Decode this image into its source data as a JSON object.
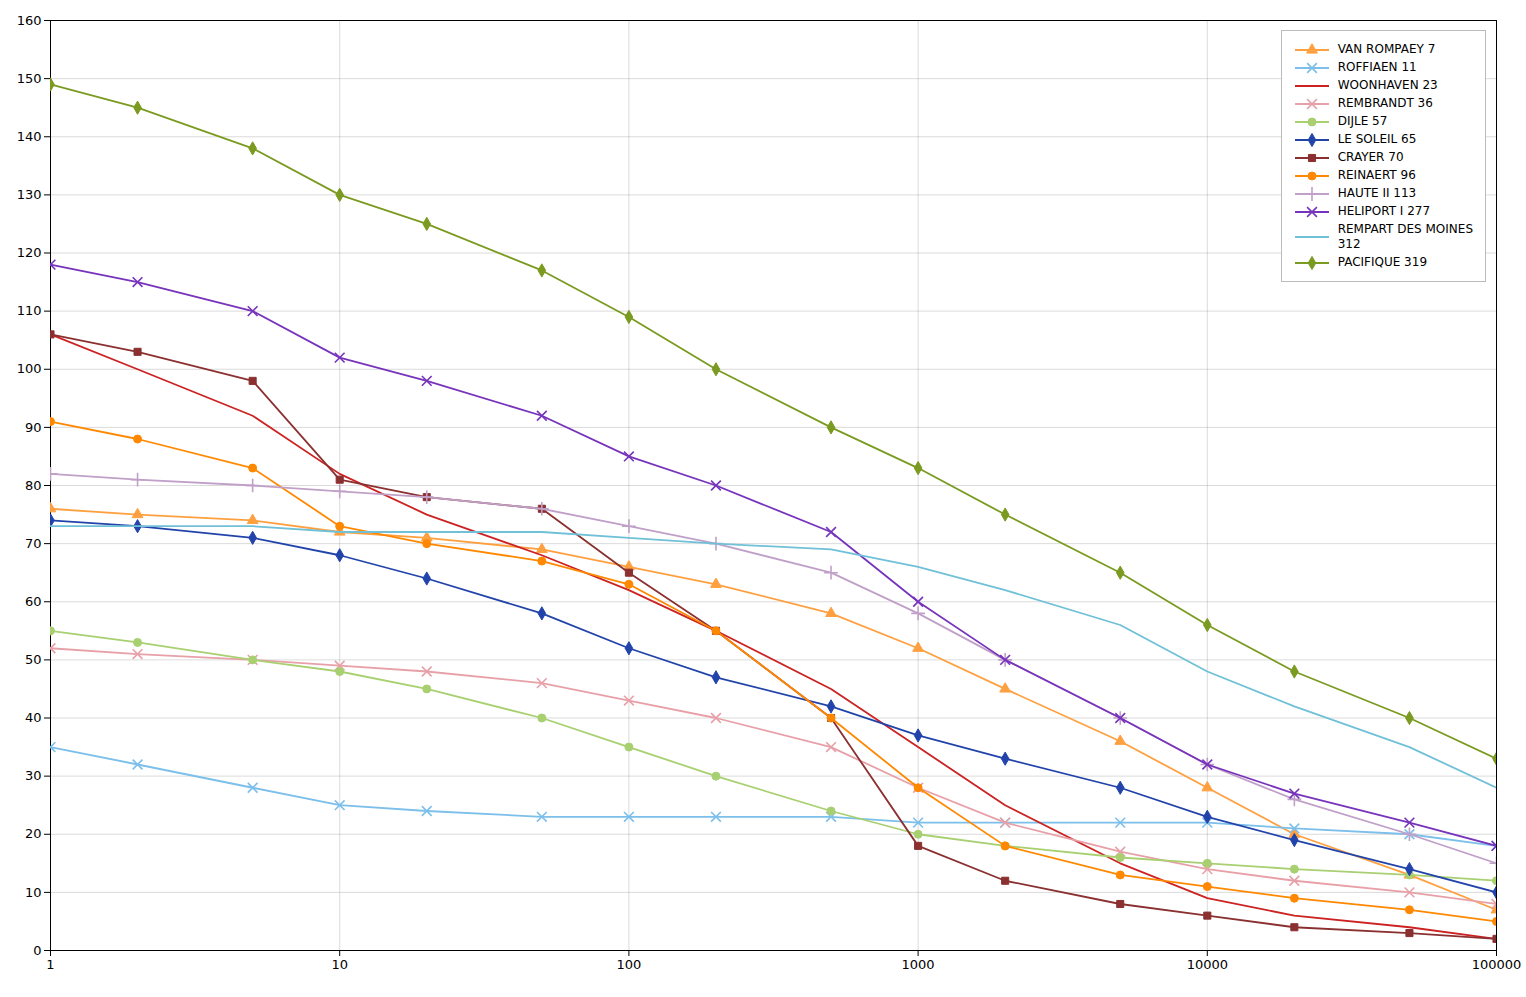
{
  "chart_data": {
    "type": "line",
    "log": "x",
    "grid": true,
    "legend": "top-right",
    "x": [
      1,
      2,
      5,
      10,
      20,
      50,
      100,
      200,
      500,
      1000,
      2000,
      5000,
      10000,
      20000,
      50000,
      100000
    ],
    "xlim": [
      1,
      100000
    ],
    "xticks": [
      1,
      10,
      100,
      1000,
      10000,
      100000
    ],
    "ylim": [
      0,
      160
    ],
    "yticks": [
      0,
      10,
      20,
      30,
      40,
      50,
      60,
      70,
      80,
      90,
      100,
      110,
      120,
      130,
      140,
      150,
      160
    ],
    "series": [
      {
        "name": "VAN ROMPAEY 7",
        "color": "#FFA040",
        "marker": "triangle",
        "values": [
          76,
          75,
          74,
          72,
          71,
          69,
          66,
          63,
          58,
          52,
          45,
          36,
          28,
          20,
          13,
          7
        ]
      },
      {
        "name": "ROFFIAEN 11",
        "color": "#7BBFEA",
        "marker": "x",
        "values": [
          35,
          32,
          28,
          25,
          24,
          23,
          23,
          23,
          23,
          22,
          22,
          22,
          22,
          21,
          20,
          18
        ]
      },
      {
        "name": "WOONHAVEN 23",
        "color": "#CC2222",
        "marker": "none",
        "values": [
          106,
          100,
          92,
          82,
          75,
          68,
          62,
          55,
          45,
          35,
          25,
          15,
          9,
          6,
          4,
          2
        ]
      },
      {
        "name": "REMBRANDT 36",
        "color": "#E8A0A8",
        "marker": "x",
        "values": [
          52,
          51,
          50,
          49,
          48,
          46,
          43,
          40,
          35,
          28,
          22,
          17,
          14,
          12,
          10,
          8
        ]
      },
      {
        "name": "DIJLE 57",
        "color": "#A8D070",
        "marker": "circle",
        "values": [
          55,
          53,
          50,
          48,
          45,
          40,
          35,
          30,
          24,
          20,
          18,
          16,
          15,
          14,
          13,
          12
        ]
      },
      {
        "name": "LE SOLEIL  65",
        "color": "#2244AA",
        "marker": "diamond",
        "values": [
          74,
          73,
          71,
          68,
          64,
          58,
          52,
          47,
          42,
          37,
          33,
          28,
          23,
          19,
          14,
          10
        ]
      },
      {
        "name": "CRAYER 70",
        "color": "#8B3030",
        "marker": "square",
        "values": [
          106,
          103,
          98,
          81,
          78,
          76,
          65,
          55,
          40,
          18,
          12,
          8,
          6,
          4,
          3,
          2
        ]
      },
      {
        "name": "REINAERT 96",
        "color": "#FF8800",
        "marker": "circle",
        "values": [
          91,
          88,
          83,
          73,
          70,
          67,
          63,
          55,
          40,
          28,
          18,
          13,
          11,
          9,
          7,
          5
        ]
      },
      {
        "name": "HAUTE II 113",
        "color": "#C0A0C8",
        "marker": "plus",
        "values": [
          82,
          81,
          80,
          79,
          78,
          76,
          73,
          70,
          65,
          58,
          50,
          40,
          32,
          26,
          20,
          15
        ]
      },
      {
        "name": "HELIPORT I 277",
        "color": "#7733BB",
        "marker": "x",
        "values": [
          118,
          115,
          110,
          102,
          98,
          92,
          85,
          80,
          72,
          60,
          50,
          40,
          32,
          27,
          22,
          18
        ]
      },
      {
        "name": "REMPART DES MOINES\n312",
        "color": "#70C0D8",
        "marker": "none",
        "values": [
          73,
          73,
          73,
          72,
          72,
          72,
          71,
          70,
          69,
          66,
          62,
          56,
          48,
          42,
          35,
          28
        ]
      },
      {
        "name": "PACIFIQUE 319",
        "color": "#7A9A20",
        "marker": "diamond",
        "values": [
          149,
          145,
          138,
          130,
          125,
          117,
          109,
          100,
          90,
          83,
          75,
          65,
          56,
          48,
          40,
          33
        ]
      }
    ]
  }
}
